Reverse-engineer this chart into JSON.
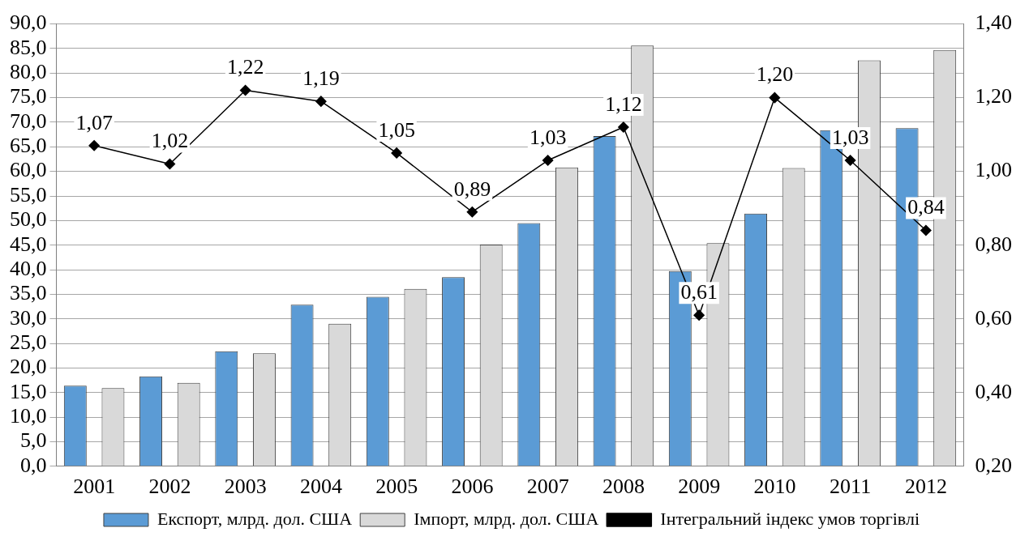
{
  "chart_data": {
    "type": "bar",
    "categories": [
      "2001",
      "2002",
      "2003",
      "2004",
      "2005",
      "2006",
      "2007",
      "2008",
      "2009",
      "2010",
      "2011",
      "2012"
    ],
    "series": [
      {
        "name": "Експорт, млрд. дол. США",
        "color": "#5b9bd5",
        "values": [
          16.4,
          18.3,
          23.4,
          32.9,
          34.5,
          38.5,
          49.5,
          67.2,
          39.7,
          51.4,
          68.4,
          68.8
        ]
      },
      {
        "name": "Імпорт, млрд. дол. США",
        "color": "#d9d9d9",
        "values": [
          15.9,
          17.0,
          23.0,
          29.0,
          36.1,
          45.1,
          60.8,
          85.6,
          45.4,
          60.7,
          82.6,
          84.7
        ]
      },
      {
        "name": "Інтегральний індекс умов торгівлі",
        "type": "line",
        "axis": "y2",
        "color": "#000000",
        "marker": "diamond",
        "values": [
          1.07,
          1.02,
          1.22,
          1.19,
          1.05,
          0.89,
          1.03,
          1.12,
          0.61,
          1.2,
          1.03,
          0.84
        ],
        "value_labels": [
          "1,07",
          "1,02",
          "1,22",
          "1,19",
          "1,05",
          "0,89",
          "1,03",
          "1,12",
          "0,61",
          "1,20",
          "1,03",
          "0,84"
        ]
      }
    ],
    "ylim": [
      0,
      90
    ],
    "yticks": [
      {
        "value": 0,
        "label": "0,0"
      },
      {
        "value": 5,
        "label": "5,0"
      },
      {
        "value": 10,
        "label": "10,0"
      },
      {
        "value": 15,
        "label": "15,0"
      },
      {
        "value": 20,
        "label": "20,0"
      },
      {
        "value": 25,
        "label": "25,0"
      },
      {
        "value": 30,
        "label": "30,0"
      },
      {
        "value": 35,
        "label": "35,0"
      },
      {
        "value": 40,
        "label": "40,0"
      },
      {
        "value": 45,
        "label": "45,0"
      },
      {
        "value": 50,
        "label": "50,0"
      },
      {
        "value": 55,
        "label": "55,0"
      },
      {
        "value": 60,
        "label": "60,0"
      },
      {
        "value": 65,
        "label": "65,0"
      },
      {
        "value": 70,
        "label": "70,0"
      },
      {
        "value": 75,
        "label": "75,0"
      },
      {
        "value": 80,
        "label": "80,0"
      },
      {
        "value": 85,
        "label": "85,0"
      },
      {
        "value": 90,
        "label": "90,0"
      }
    ],
    "y2lim": [
      0.2,
      1.4
    ],
    "y2ticks": [
      {
        "value": 0.2,
        "label": "0,20"
      },
      {
        "value": 0.4,
        "label": "0,40"
      },
      {
        "value": 0.6,
        "label": "0,60"
      },
      {
        "value": 0.8,
        "label": "0,80"
      },
      {
        "value": 1.0,
        "label": "1,00"
      },
      {
        "value": 1.2,
        "label": "1,20"
      },
      {
        "value": 1.4,
        "label": "1,40"
      }
    ],
    "grid": "y",
    "legend": "bottom"
  }
}
